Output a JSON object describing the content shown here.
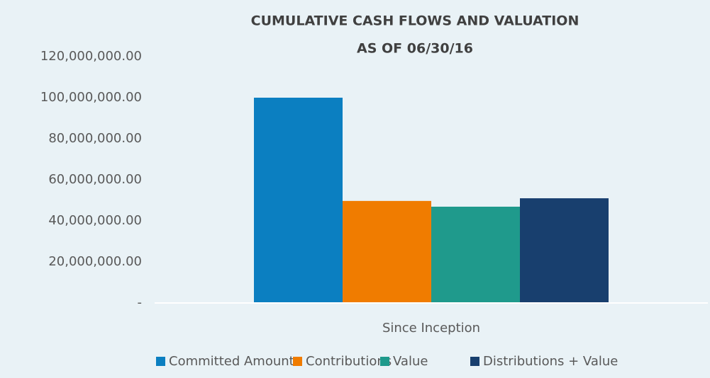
{
  "chart_data": {
    "type": "bar",
    "title": [
      "CUMULATIVE CASH FLOWS AND VALUATION",
      "AS OF 06/30/16"
    ],
    "categories": [
      "Since Inception"
    ],
    "series": [
      {
        "name": "Committed Amount",
        "color": "#0b7fc1",
        "values": [
          100000000
        ]
      },
      {
        "name": "Contributions",
        "color": "#f07c00",
        "values": [
          49700000
        ]
      },
      {
        "name": "Value",
        "color": "#1f9a8c",
        "values": [
          46900000
        ]
      },
      {
        "name": "Distributions + Value",
        "color": "#183f6e",
        "values": [
          51000000
        ]
      }
    ],
    "ylim": [
      0,
      120000000
    ],
    "yticks": [
      {
        "value": 0,
        "label": "-"
      },
      {
        "value": 20000000,
        "label": "20,000,000.00"
      },
      {
        "value": 40000000,
        "label": "40,000,000.00"
      },
      {
        "value": 60000000,
        "label": "60,000,000.00"
      },
      {
        "value": 80000000,
        "label": "80,000,000.00"
      },
      {
        "value": 100000000,
        "label": "100,000,000.00"
      },
      {
        "value": 120000000,
        "label": "120,000,000.00"
      }
    ],
    "grid": false,
    "legend": "bottom"
  }
}
